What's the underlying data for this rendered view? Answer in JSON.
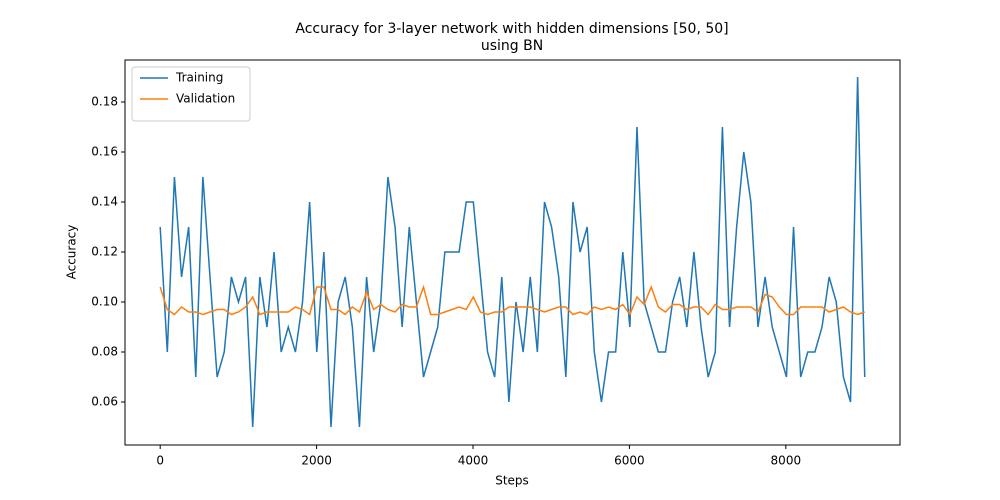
{
  "chart_data": {
    "type": "line",
    "title": [
      "Accuracy for 3-layer network with hidden dimensions [50, 50]",
      "using BN"
    ],
    "xlabel": "Steps",
    "ylabel": "Accuracy",
    "x": [
      0,
      91,
      182,
      273,
      364,
      455,
      546,
      637,
      728,
      819,
      910,
      1001,
      1092,
      1183,
      1274,
      1365,
      1456,
      1547,
      1638,
      1729,
      1820,
      1911,
      2002,
      2093,
      2184,
      2275,
      2366,
      2457,
      2548,
      2639,
      2730,
      2821,
      2912,
      3003,
      3094,
      3185,
      3276,
      3367,
      3458,
      3549,
      3640,
      3731,
      3822,
      3913,
      4004,
      4095,
      4186,
      4277,
      4368,
      4459,
      4550,
      4641,
      4732,
      4823,
      4914,
      5005,
      5096,
      5187,
      5278,
      5369,
      5460,
      5551,
      5642,
      5733,
      5824,
      5915,
      6006,
      6097,
      6188,
      6279,
      6370,
      6461,
      6552,
      6643,
      6734,
      6825,
      6916,
      7007,
      7098,
      7189,
      7280,
      7371,
      7462,
      7553,
      7644,
      7735,
      7826,
      7917,
      8008,
      8099,
      8190,
      8281,
      8372,
      8463,
      8554,
      8645,
      8736,
      8827,
      8918,
      9009
    ],
    "series": [
      {
        "name": "Training",
        "color": "#1f77b4",
        "values": [
          0.13,
          0.08,
          0.15,
          0.11,
          0.13,
          0.07,
          0.15,
          0.11,
          0.07,
          0.08,
          0.11,
          0.1,
          0.11,
          0.05,
          0.11,
          0.09,
          0.12,
          0.08,
          0.09,
          0.08,
          0.1,
          0.14,
          0.08,
          0.12,
          0.05,
          0.1,
          0.11,
          0.09,
          0.05,
          0.11,
          0.08,
          0.1,
          0.15,
          0.13,
          0.09,
          0.13,
          0.1,
          0.07,
          0.08,
          0.09,
          0.12,
          0.12,
          0.12,
          0.14,
          0.14,
          0.11,
          0.08,
          0.07,
          0.11,
          0.06,
          0.1,
          0.08,
          0.11,
          0.08,
          0.14,
          0.13,
          0.11,
          0.07,
          0.14,
          0.12,
          0.13,
          0.08,
          0.06,
          0.08,
          0.08,
          0.12,
          0.09,
          0.17,
          0.1,
          0.09,
          0.08,
          0.08,
          0.1,
          0.11,
          0.09,
          0.12,
          0.09,
          0.07,
          0.08,
          0.17,
          0.09,
          0.13,
          0.16,
          0.14,
          0.09,
          0.11,
          0.09,
          0.08,
          0.07,
          0.13,
          0.07,
          0.08,
          0.08,
          0.09,
          0.11,
          0.1,
          0.07,
          0.06,
          0.19,
          0.07
        ]
      },
      {
        "name": "Validation",
        "color": "#ff7f0e",
        "values": [
          0.106,
          0.097,
          0.095,
          0.098,
          0.096,
          0.096,
          0.095,
          0.096,
          0.097,
          0.097,
          0.095,
          0.096,
          0.098,
          0.102,
          0.095,
          0.096,
          0.096,
          0.096,
          0.096,
          0.098,
          0.097,
          0.095,
          0.106,
          0.106,
          0.097,
          0.097,
          0.095,
          0.098,
          0.096,
          0.104,
          0.097,
          0.099,
          0.097,
          0.096,
          0.099,
          0.098,
          0.098,
          0.106,
          0.095,
          0.095,
          0.096,
          0.097,
          0.098,
          0.097,
          0.102,
          0.096,
          0.095,
          0.096,
          0.096,
          0.098,
          0.098,
          0.098,
          0.098,
          0.097,
          0.096,
          0.097,
          0.098,
          0.098,
          0.095,
          0.096,
          0.095,
          0.098,
          0.097,
          0.098,
          0.097,
          0.099,
          0.095,
          0.102,
          0.099,
          0.106,
          0.098,
          0.096,
          0.099,
          0.099,
          0.097,
          0.098,
          0.098,
          0.095,
          0.099,
          0.097,
          0.097,
          0.098,
          0.098,
          0.098,
          0.096,
          0.103,
          0.102,
          0.098,
          0.095,
          0.095,
          0.098,
          0.098,
          0.098,
          0.098,
          0.096,
          0.097,
          0.098,
          0.096,
          0.095,
          0.096
        ]
      }
    ],
    "xlim": [
      -450,
      9460
    ],
    "ylim": [
      0.0428,
      0.1968
    ],
    "xticks": [
      0,
      2000,
      4000,
      6000,
      8000
    ],
    "yticks": [
      0.06,
      0.08,
      {
        "value": 0.1,
        "label": "0.10"
      },
      0.12,
      0.14,
      0.16,
      0.18
    ],
    "legend": "upper left",
    "grid": false
  }
}
